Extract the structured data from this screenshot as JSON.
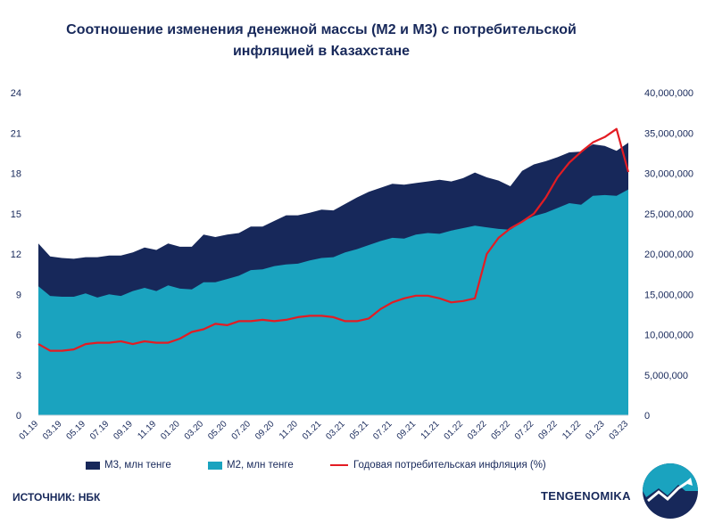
{
  "title_line1": "Соотношение изменения денежной массы (М2 и М3) с потребительской",
  "title_line2": "инфляцией в Казахстане",
  "source_text": "ИСТОЧНИК: НБК",
  "brand_text": "TENGENOMIKA",
  "colors": {
    "m3": "#17285a",
    "m2": "#1aa3bf",
    "inflation": "#e31c23",
    "text": "#17285a"
  },
  "chart_data": {
    "type": "area",
    "x": [
      "01.19",
      "02.19",
      "03.19",
      "04.19",
      "05.19",
      "06.19",
      "07.19",
      "08.19",
      "09.19",
      "10.19",
      "11.19",
      "12.19",
      "01.20",
      "02.20",
      "03.20",
      "04.20",
      "05.20",
      "06.20",
      "07.20",
      "08.20",
      "09.20",
      "10.20",
      "11.20",
      "12.20",
      "01.21",
      "02.21",
      "03.21",
      "04.21",
      "05.21",
      "06.21",
      "07.21",
      "08.21",
      "09.21",
      "10.21",
      "11.21",
      "12.21",
      "01.22",
      "02.22",
      "03.22",
      "04.22",
      "05.22",
      "06.22",
      "07.22",
      "08.22",
      "09.22",
      "10.22",
      "11.22",
      "12.22",
      "01.23",
      "02.23",
      "03.23"
    ],
    "x_tick_labels": [
      "01.19",
      "03.19",
      "05.19",
      "07.19",
      "09.19",
      "11.19",
      "01.20",
      "03.20",
      "05.20",
      "07.20",
      "09.20",
      "11.20",
      "01.21",
      "03.21",
      "05.21",
      "07.21",
      "09.21",
      "11.21",
      "01.22",
      "03.22",
      "05.22",
      "07.22",
      "09.22",
      "11.22",
      "01.23",
      "03.23"
    ],
    "y_left": {
      "ticks": [
        "0",
        "3",
        "6",
        "9",
        "12",
        "15",
        "18",
        "21",
        "24"
      ],
      "range": [
        0,
        24
      ]
    },
    "y_right": {
      "ticks": [
        "0",
        "5,000,000",
        "10,000,000",
        "15,000,000",
        "20,000,000",
        "25,000,000",
        "30,000,000",
        "35,000,000",
        "40,000,000"
      ],
      "range": [
        0,
        40000000
      ]
    },
    "series": [
      {
        "name": "М3, млн тенге",
        "kind": "area",
        "axis": "right",
        "values": [
          21300000,
          19700000,
          19500000,
          19400000,
          19600000,
          19600000,
          19800000,
          19800000,
          20200000,
          20800000,
          20500000,
          21300000,
          20900000,
          20900000,
          22400000,
          22100000,
          22400000,
          22600000,
          23400000,
          23400000,
          24100000,
          24800000,
          24800000,
          25100000,
          25500000,
          25400000,
          26200000,
          27000000,
          27700000,
          28200000,
          28700000,
          28600000,
          28800000,
          29000000,
          29200000,
          29000000,
          29400000,
          30100000,
          29500000,
          29100000,
          28400000,
          30300000,
          31100000,
          31500000,
          32000000,
          32600000,
          32700000,
          33600000,
          33400000,
          32800000,
          33800000
        ]
      },
      {
        "name": "М2, млн тенге",
        "kind": "area",
        "axis": "right",
        "values": [
          16000000,
          14800000,
          14700000,
          14700000,
          15100000,
          14600000,
          15000000,
          14800000,
          15400000,
          15800000,
          15400000,
          16100000,
          15700000,
          15600000,
          16500000,
          16500000,
          16900000,
          17300000,
          18000000,
          18100000,
          18500000,
          18700000,
          18800000,
          19200000,
          19500000,
          19600000,
          20200000,
          20600000,
          21100000,
          21600000,
          22000000,
          21900000,
          22400000,
          22600000,
          22500000,
          22900000,
          23200000,
          23500000,
          23300000,
          23100000,
          23000000,
          24000000,
          24700000,
          25100000,
          25700000,
          26300000,
          26100000,
          27200000,
          27300000,
          27200000,
          28000000
        ]
      },
      {
        "name": "Годовая потребительская инфляция (%)",
        "kind": "line",
        "axis": "left",
        "values": [
          5.3,
          4.8,
          4.8,
          4.9,
          5.3,
          5.4,
          5.4,
          5.5,
          5.3,
          5.5,
          5.4,
          5.4,
          5.7,
          6.2,
          6.4,
          6.8,
          6.7,
          7.0,
          7.0,
          7.1,
          7.0,
          7.1,
          7.3,
          7.4,
          7.4,
          7.3,
          7.0,
          7.0,
          7.2,
          7.9,
          8.4,
          8.7,
          8.9,
          8.9,
          8.7,
          8.4,
          8.5,
          8.7,
          12.0,
          13.2,
          13.9,
          14.4,
          15.0,
          16.2,
          17.7,
          18.8,
          19.6,
          20.3,
          20.7,
          21.3,
          18.1
        ]
      }
    ],
    "legend_position": "bottom",
    "grid": false
  }
}
